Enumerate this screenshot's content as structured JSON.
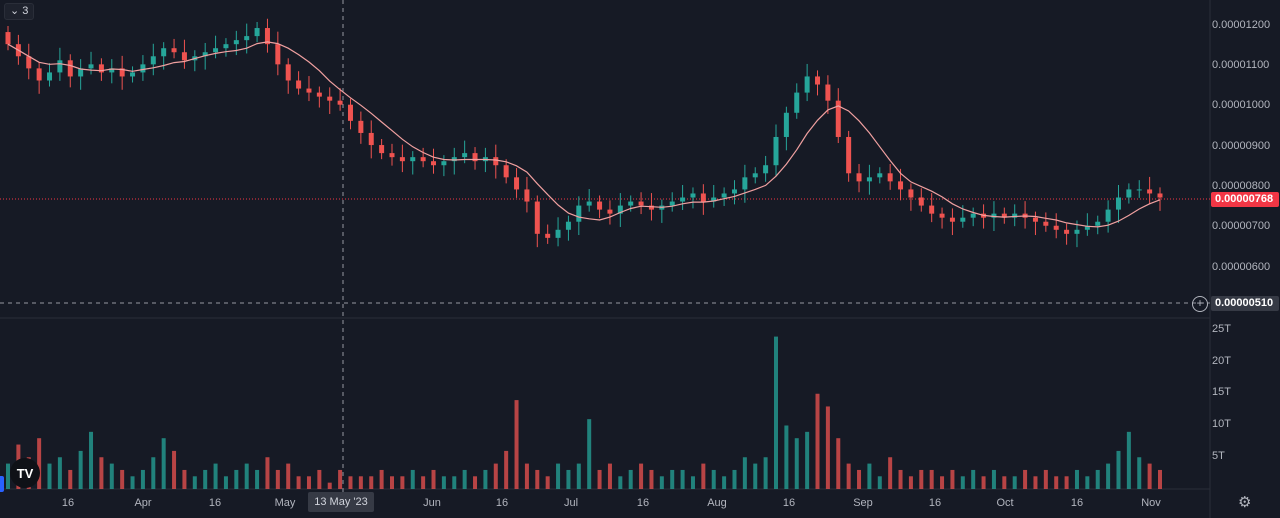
{
  "toolbar": {
    "indicator_count": "3",
    "chevron": "chevron-down-icon"
  },
  "price_axis": {
    "labels": [
      "0.00001200",
      "0.00001100",
      "0.00001000",
      "0.00000900",
      "0.00000800",
      "0.00000700",
      "0.00000600"
    ],
    "current_price": "0.00000768",
    "crosshair_price": "0.00000510",
    "current_color": "#f23645"
  },
  "volume_axis": {
    "labels": [
      "25T",
      "20T",
      "15T",
      "10T",
      "5T"
    ]
  },
  "time_axis": {
    "labels": [
      "16",
      "Apr",
      "16",
      "May",
      "Jun",
      "16",
      "Jul",
      "16",
      "Aug",
      "16",
      "Sep",
      "16",
      "Oct",
      "16",
      "Nov"
    ],
    "crosshair_date": "13 May '23"
  },
  "colors": {
    "up": "#26a69a",
    "down": "#ef5350",
    "ma": "#f0a0a0",
    "background": "#161a25"
  },
  "chart_data": {
    "type": "candlestick",
    "y_range": [
      5.1e-06,
      1.24e-05
    ],
    "volume_range_T": [
      0,
      25
    ],
    "close_series": [
      11.5,
      11.2,
      10.9,
      10.6,
      10.8,
      11.1,
      10.7,
      10.9,
      11.0,
      10.8,
      10.9,
      10.7,
      10.8,
      11.0,
      11.2,
      11.4,
      11.3,
      11.1,
      11.2,
      11.3,
      11.4,
      11.5,
      11.6,
      11.7,
      11.9,
      11.5,
      11.0,
      10.6,
      10.4,
      10.3,
      10.2,
      10.1,
      10.0,
      9.6,
      9.3,
      9.0,
      8.8,
      8.7,
      8.6,
      8.7,
      8.6,
      8.5,
      8.6,
      8.7,
      8.8,
      8.6,
      8.7,
      8.5,
      8.2,
      7.9,
      7.6,
      6.8,
      6.7,
      6.9,
      7.1,
      7.5,
      7.6,
      7.4,
      7.3,
      7.5,
      7.6,
      7.5,
      7.4,
      7.5,
      7.6,
      7.7,
      7.8,
      7.6,
      7.7,
      7.8,
      7.9,
      8.2,
      8.3,
      8.5,
      9.2,
      9.8,
      10.3,
      10.7,
      10.5,
      10.1,
      9.2,
      8.3,
      8.1,
      8.2,
      8.3,
      8.1,
      7.9,
      7.7,
      7.5,
      7.3,
      7.2,
      7.1,
      7.2,
      7.3,
      7.2,
      7.3,
      7.2,
      7.3,
      7.2,
      7.1,
      7.0,
      6.9,
      6.8,
      6.9,
      7.0,
      7.1,
      7.4,
      7.7,
      7.9,
      7.9,
      7.8,
      7.7
    ],
    "volume_T": [
      4,
      7,
      5,
      8,
      4,
      5,
      3,
      6,
      9,
      5,
      4,
      3,
      2,
      3,
      5,
      8,
      6,
      3,
      2,
      3,
      4,
      2,
      3,
      4,
      3,
      5,
      3,
      4,
      2,
      2,
      3,
      1,
      3,
      2,
      2,
      2,
      3,
      2,
      2,
      3,
      2,
      3,
      2,
      2,
      3,
      2,
      3,
      4,
      6,
      14,
      4,
      3,
      2,
      4,
      3,
      4,
      11,
      3,
      4,
      2,
      3,
      4,
      3,
      2,
      3,
      3,
      2,
      4,
      3,
      2,
      3,
      5,
      4,
      5,
      24,
      10,
      8,
      9,
      15,
      13,
      8,
      4,
      3,
      4,
      2,
      5,
      3,
      2,
      3,
      3,
      2,
      3,
      2,
      3,
      2,
      3,
      2,
      2,
      3,
      2,
      3,
      2,
      2,
      3,
      2,
      3,
      4,
      6,
      9,
      5,
      4,
      3
    ]
  }
}
